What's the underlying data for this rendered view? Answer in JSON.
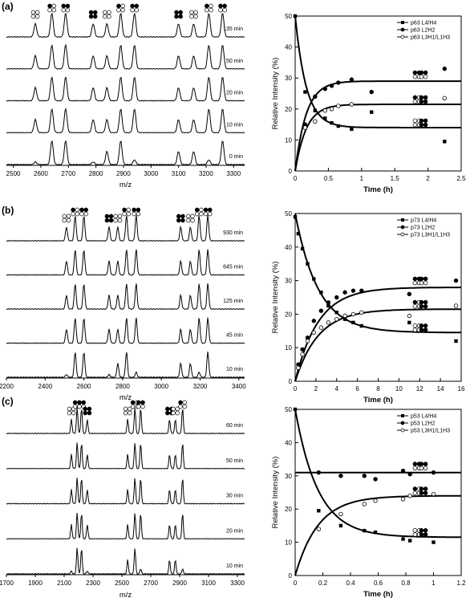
{
  "panels": [
    {
      "label": "(a)",
      "spectrum": {
        "xlabel": "m/z",
        "xticks": [
          "2500",
          "2600",
          "2700",
          "2800",
          "2900",
          "3000",
          "3100",
          "3200",
          "3300"
        ],
        "traces": [
          "135 min",
          "50 min",
          "20 min",
          "10 min",
          "0 min"
        ]
      },
      "kinetics": {
        "xlabel": "Time (h)",
        "ylabel": "Relative Intensity (%)",
        "xticks": [
          "0",
          "0.5",
          "1",
          "1.5",
          "2",
          "2.5"
        ],
        "yticks": [
          "0",
          "10",
          "20",
          "30",
          "40",
          "50"
        ],
        "legend": [
          "p63 L4/H4",
          "p63 L2H2",
          "p63 L3H1/L1H3"
        ]
      }
    },
    {
      "label": "(b)",
      "spectrum": {
        "xlabel": "m/z",
        "xticks": [
          "2200",
          "2400",
          "2600",
          "2800",
          "3000",
          "3200",
          "3400"
        ],
        "traces": [
          "930 min",
          "645 min",
          "125 min",
          "45 min",
          "10 min"
        ]
      },
      "kinetics": {
        "xlabel": "Time (h)",
        "ylabel": "Relative Intensity (%)",
        "xticks": [
          "0",
          "2",
          "4",
          "6",
          "8",
          "10",
          "12",
          "14",
          "16"
        ],
        "yticks": [
          "0",
          "10",
          "20",
          "30",
          "40",
          "50"
        ],
        "legend": [
          "p73 L4/H4",
          "p73 L2H2",
          "p73 L3H1/L1H3"
        ]
      }
    },
    {
      "label": "(c)",
      "spectrum": {
        "xlabel": "m/z",
        "xticks": [
          "1700",
          "1900",
          "2100",
          "2300",
          "2500",
          "2700",
          "2900",
          "3100",
          "3300"
        ],
        "traces": [
          "60 min",
          "50 min",
          "30 min",
          "20 min",
          "10 min"
        ]
      },
      "kinetics": {
        "xlabel": "Time (h)",
        "ylabel": "Relative Intensity (%)",
        "xticks": [
          "0",
          "0.2",
          "0.4",
          "0.6",
          "0.8",
          "1",
          "1.2"
        ],
        "yticks": [
          "0",
          "10",
          "20",
          "30",
          "40",
          "50"
        ],
        "legend": [
          "p53 L4/H4",
          "p53 L2H2",
          "p53 L3H1/L1H3"
        ]
      }
    }
  ],
  "chart_data": [
    {
      "type": "scatter",
      "title": "",
      "xlabel": "Time (h)",
      "ylabel": "Relative Intensity (%)",
      "xlim": [
        0,
        2.5
      ],
      "ylim": [
        0,
        50
      ],
      "series": [
        {
          "name": "p63 L4/H4",
          "marker": "filled-square",
          "x": [
            0,
            0.15,
            0.3,
            0.45,
            0.55,
            0.65,
            0.85,
            1.15,
            2.25
          ],
          "y": [
            50,
            25.5,
            19.5,
            17,
            15.5,
            14.5,
            13.5,
            19,
            9.5
          ],
          "fit_plateau": 14
        },
        {
          "name": "p63 L2H2",
          "marker": "filled-circle",
          "x": [
            0.15,
            0.3,
            0.45,
            0.55,
            0.65,
            0.85,
            1.15,
            2.25
          ],
          "y": [
            15,
            24,
            26.5,
            27.5,
            28.5,
            29.5,
            25.5,
            33
          ],
          "fit_plateau": 29
        },
        {
          "name": "p63 L3H1/L1H3",
          "marker": "open-circle",
          "x": [
            0.15,
            0.3,
            0.45,
            0.55,
            0.65,
            0.85,
            2.25
          ],
          "y": [
            14,
            16,
            19.5,
            20,
            21,
            21.5,
            23.5
          ],
          "fit_plateau": 21.5
        }
      ]
    },
    {
      "type": "scatter",
      "title": "",
      "xlabel": "Time (h)",
      "ylabel": "Relative Intensity (%)",
      "xlim": [
        0,
        16
      ],
      "ylim": [
        0,
        50
      ],
      "series": [
        {
          "name": "p73 L4/H4",
          "marker": "filled-square",
          "x": [
            0,
            0.3,
            0.7,
            1.2,
            1.8,
            2.5,
            3.2,
            4,
            4.8,
            5.6,
            6.4,
            11,
            15.5
          ],
          "y": [
            49,
            44,
            39.5,
            35,
            30.5,
            26.5,
            22.5,
            20.5,
            18.5,
            17.5,
            16.5,
            17.5,
            12
          ],
          "fit_plateau": 14.5
        },
        {
          "name": "p73 L2H2",
          "marker": "filled-circle",
          "x": [
            0.3,
            0.7,
            1.2,
            1.8,
            2.5,
            3.2,
            4,
            4.8,
            5.6,
            6.4,
            11,
            15.5
          ],
          "y": [
            5,
            9.5,
            13,
            18,
            21,
            23.5,
            25,
            26.5,
            27,
            27,
            26,
            30
          ],
          "fit_plateau": 28
        },
        {
          "name": "p73 L3H1/L1H3",
          "marker": "open-circle",
          "x": [
            0.3,
            0.7,
            1.2,
            1.8,
            2.5,
            3.2,
            4,
            4.8,
            5.6,
            6.4,
            11,
            15.5
          ],
          "y": [
            4,
            8,
            12,
            14.5,
            16,
            17.5,
            18.5,
            19.5,
            20,
            20.5,
            19.5,
            22.5
          ],
          "fit_plateau": 21.5
        }
      ]
    },
    {
      "type": "scatter",
      "title": "",
      "xlabel": "Time (h)",
      "ylabel": "Relative Intensity (%)",
      "xlim": [
        0,
        1.2
      ],
      "ylim": [
        0,
        50
      ],
      "series": [
        {
          "name": "p53 L4/H4",
          "marker": "filled-square",
          "x": [
            0,
            0.17,
            0.33,
            0.5,
            0.58,
            0.78,
            0.83,
            1.0
          ],
          "y": [
            50,
            19.5,
            15,
            13.5,
            13,
            11,
            10.5,
            10
          ],
          "fit_plateau": 11.5
        },
        {
          "name": "p53 L2H2",
          "marker": "filled-circle",
          "x": [
            0.17,
            0.33,
            0.5,
            0.58,
            0.78,
            0.83,
            1.0
          ],
          "y": [
            31,
            30,
            30,
            29,
            31.5,
            30.5,
            31
          ],
          "fit_plateau": 31
        },
        {
          "name": "p53 L3H1/L1H3",
          "marker": "open-circle",
          "x": [
            0.17,
            0.33,
            0.5,
            0.58,
            0.78,
            0.83,
            1.0
          ],
          "y": [
            14,
            18.5,
            21.5,
            22.5,
            23,
            24,
            24.5
          ],
          "fit_plateau": 24
        }
      ]
    }
  ]
}
